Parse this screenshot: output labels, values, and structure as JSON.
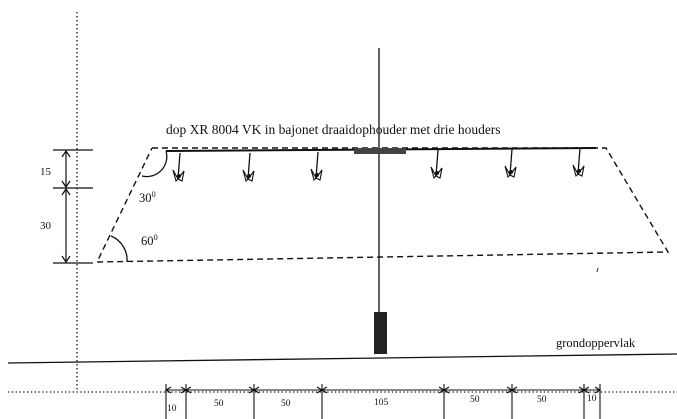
{
  "title": "dop XR 8004 VK in bajonet draaidophouder met drie houders",
  "ground_label": "grondoppervlak",
  "vertical_dimensions": [
    "15",
    "30"
  ],
  "angles": [
    {
      "base": "30",
      "exp": "0"
    },
    {
      "base": "60",
      "exp": "0"
    }
  ],
  "bottom_dimensions": [
    "10",
    "50",
    "50",
    "105",
    "50",
    "50",
    "10"
  ],
  "nozzle_count": 6,
  "colors": {
    "ink": "#111111",
    "bar": "#444444",
    "post": "#222222"
  }
}
